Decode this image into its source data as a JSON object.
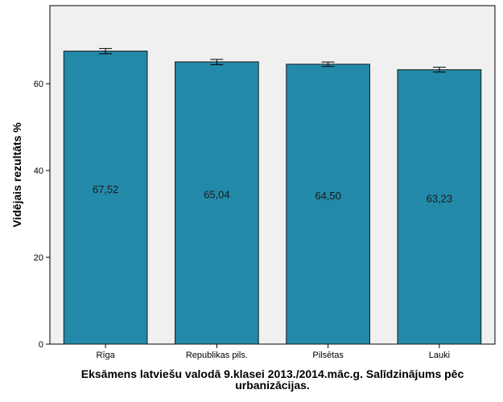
{
  "chart_data": {
    "type": "bar",
    "xlabel": "Eksāmens latviešu valodā 9.klasei 2013./2014.māc.g. Salīdzinājums pēc urbanizācijas.",
    "xlabel_lines": [
      "Eksāmens latviešu valodā 9.klasei 2013./2014.māc.g. Salīdzinājums pēc",
      "urbanizācijas."
    ],
    "ylabel": "Vidējais rezultāts %",
    "categories": [
      "Rīga",
      "Republikas pils.",
      "Pilsētas",
      "Lauki"
    ],
    "values": [
      67.52,
      65.04,
      64.5,
      63.23
    ],
    "data_labels": [
      "67,52",
      "65,04",
      "64,50",
      "63,23"
    ],
    "error_bars": [
      {
        "low": 66.9,
        "high": 68.1
      },
      {
        "low": 64.4,
        "high": 65.6
      },
      {
        "low": 64.0,
        "high": 65.0
      },
      {
        "low": 62.7,
        "high": 63.8
      }
    ],
    "y_ticks": [
      0,
      20,
      40,
      60
    ],
    "ylim": [
      0,
      78
    ],
    "grid": false,
    "colors": {
      "bar": "#2389a9",
      "bar_stroke": "#1a1a1a",
      "plot_background": "#f0f0f0",
      "frame": "#000000"
    }
  }
}
